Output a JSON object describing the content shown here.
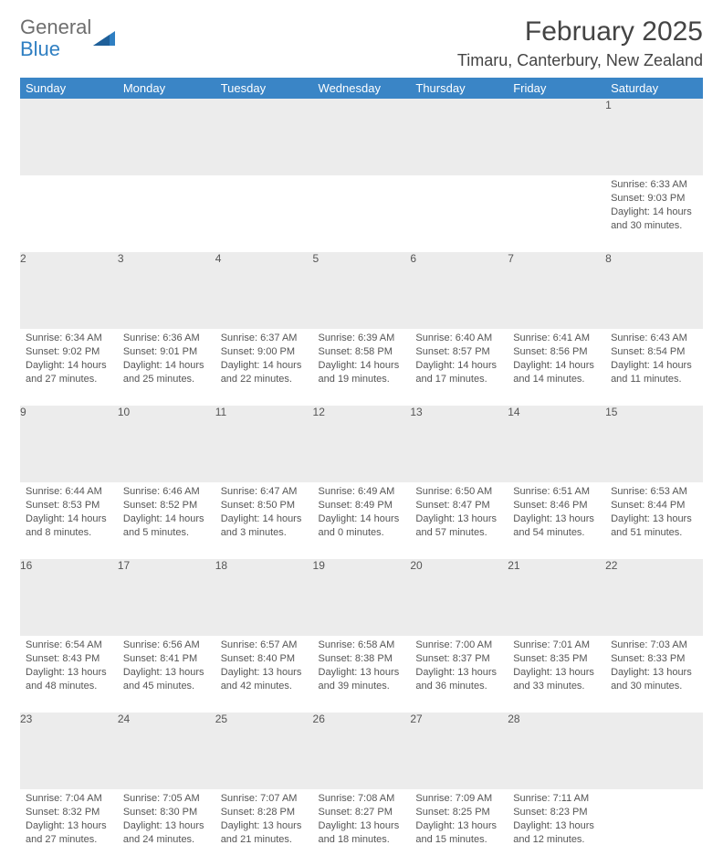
{
  "logo": {
    "line1": "General",
    "line2": "Blue",
    "triangle_color": "#2f7fc2",
    "text_gray": "#6e6e6e"
  },
  "title": "February 2025",
  "location": "Timaru, Canterbury, New Zealand",
  "header_bg": "#3a85c6",
  "header_fg": "#ffffff",
  "daynum_bg": "#ececec",
  "rule_color": "#3a6a9a",
  "text_color": "#555555",
  "columns": [
    "Sunday",
    "Monday",
    "Tuesday",
    "Wednesday",
    "Thursday",
    "Friday",
    "Saturday"
  ],
  "weeks": [
    [
      null,
      null,
      null,
      null,
      null,
      null,
      {
        "n": "1",
        "sr": "Sunrise: 6:33 AM",
        "ss": "Sunset: 9:03 PM",
        "d1": "Daylight: 14 hours",
        "d2": "and 30 minutes."
      }
    ],
    [
      {
        "n": "2",
        "sr": "Sunrise: 6:34 AM",
        "ss": "Sunset: 9:02 PM",
        "d1": "Daylight: 14 hours",
        "d2": "and 27 minutes."
      },
      {
        "n": "3",
        "sr": "Sunrise: 6:36 AM",
        "ss": "Sunset: 9:01 PM",
        "d1": "Daylight: 14 hours",
        "d2": "and 25 minutes."
      },
      {
        "n": "4",
        "sr": "Sunrise: 6:37 AM",
        "ss": "Sunset: 9:00 PM",
        "d1": "Daylight: 14 hours",
        "d2": "and 22 minutes."
      },
      {
        "n": "5",
        "sr": "Sunrise: 6:39 AM",
        "ss": "Sunset: 8:58 PM",
        "d1": "Daylight: 14 hours",
        "d2": "and 19 minutes."
      },
      {
        "n": "6",
        "sr": "Sunrise: 6:40 AM",
        "ss": "Sunset: 8:57 PM",
        "d1": "Daylight: 14 hours",
        "d2": "and 17 minutes."
      },
      {
        "n": "7",
        "sr": "Sunrise: 6:41 AM",
        "ss": "Sunset: 8:56 PM",
        "d1": "Daylight: 14 hours",
        "d2": "and 14 minutes."
      },
      {
        "n": "8",
        "sr": "Sunrise: 6:43 AM",
        "ss": "Sunset: 8:54 PM",
        "d1": "Daylight: 14 hours",
        "d2": "and 11 minutes."
      }
    ],
    [
      {
        "n": "9",
        "sr": "Sunrise: 6:44 AM",
        "ss": "Sunset: 8:53 PM",
        "d1": "Daylight: 14 hours",
        "d2": "and 8 minutes."
      },
      {
        "n": "10",
        "sr": "Sunrise: 6:46 AM",
        "ss": "Sunset: 8:52 PM",
        "d1": "Daylight: 14 hours",
        "d2": "and 5 minutes."
      },
      {
        "n": "11",
        "sr": "Sunrise: 6:47 AM",
        "ss": "Sunset: 8:50 PM",
        "d1": "Daylight: 14 hours",
        "d2": "and 3 minutes."
      },
      {
        "n": "12",
        "sr": "Sunrise: 6:49 AM",
        "ss": "Sunset: 8:49 PM",
        "d1": "Daylight: 14 hours",
        "d2": "and 0 minutes."
      },
      {
        "n": "13",
        "sr": "Sunrise: 6:50 AM",
        "ss": "Sunset: 8:47 PM",
        "d1": "Daylight: 13 hours",
        "d2": "and 57 minutes."
      },
      {
        "n": "14",
        "sr": "Sunrise: 6:51 AM",
        "ss": "Sunset: 8:46 PM",
        "d1": "Daylight: 13 hours",
        "d2": "and 54 minutes."
      },
      {
        "n": "15",
        "sr": "Sunrise: 6:53 AM",
        "ss": "Sunset: 8:44 PM",
        "d1": "Daylight: 13 hours",
        "d2": "and 51 minutes."
      }
    ],
    [
      {
        "n": "16",
        "sr": "Sunrise: 6:54 AM",
        "ss": "Sunset: 8:43 PM",
        "d1": "Daylight: 13 hours",
        "d2": "and 48 minutes."
      },
      {
        "n": "17",
        "sr": "Sunrise: 6:56 AM",
        "ss": "Sunset: 8:41 PM",
        "d1": "Daylight: 13 hours",
        "d2": "and 45 minutes."
      },
      {
        "n": "18",
        "sr": "Sunrise: 6:57 AM",
        "ss": "Sunset: 8:40 PM",
        "d1": "Daylight: 13 hours",
        "d2": "and 42 minutes."
      },
      {
        "n": "19",
        "sr": "Sunrise: 6:58 AM",
        "ss": "Sunset: 8:38 PM",
        "d1": "Daylight: 13 hours",
        "d2": "and 39 minutes."
      },
      {
        "n": "20",
        "sr": "Sunrise: 7:00 AM",
        "ss": "Sunset: 8:37 PM",
        "d1": "Daylight: 13 hours",
        "d2": "and 36 minutes."
      },
      {
        "n": "21",
        "sr": "Sunrise: 7:01 AM",
        "ss": "Sunset: 8:35 PM",
        "d1": "Daylight: 13 hours",
        "d2": "and 33 minutes."
      },
      {
        "n": "22",
        "sr": "Sunrise: 7:03 AM",
        "ss": "Sunset: 8:33 PM",
        "d1": "Daylight: 13 hours",
        "d2": "and 30 minutes."
      }
    ],
    [
      {
        "n": "23",
        "sr": "Sunrise: 7:04 AM",
        "ss": "Sunset: 8:32 PM",
        "d1": "Daylight: 13 hours",
        "d2": "and 27 minutes."
      },
      {
        "n": "24",
        "sr": "Sunrise: 7:05 AM",
        "ss": "Sunset: 8:30 PM",
        "d1": "Daylight: 13 hours",
        "d2": "and 24 minutes."
      },
      {
        "n": "25",
        "sr": "Sunrise: 7:07 AM",
        "ss": "Sunset: 8:28 PM",
        "d1": "Daylight: 13 hours",
        "d2": "and 21 minutes."
      },
      {
        "n": "26",
        "sr": "Sunrise: 7:08 AM",
        "ss": "Sunset: 8:27 PM",
        "d1": "Daylight: 13 hours",
        "d2": "and 18 minutes."
      },
      {
        "n": "27",
        "sr": "Sunrise: 7:09 AM",
        "ss": "Sunset: 8:25 PM",
        "d1": "Daylight: 13 hours",
        "d2": "and 15 minutes."
      },
      {
        "n": "28",
        "sr": "Sunrise: 7:11 AM",
        "ss": "Sunset: 8:23 PM",
        "d1": "Daylight: 13 hours",
        "d2": "and 12 minutes."
      },
      null
    ]
  ]
}
